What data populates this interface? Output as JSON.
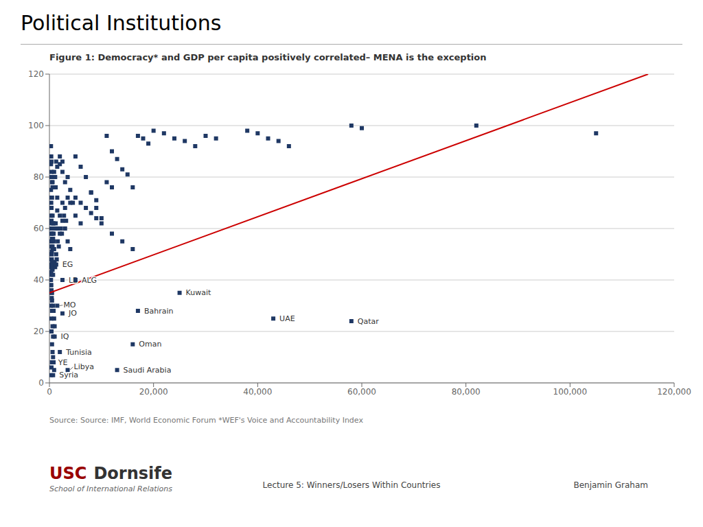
{
  "chart_data": {
    "type": "scatter",
    "title": "Political Institutions",
    "subtitle": "Figure 1: Democracy* and GDP per capita positively correlated– MENA is the exception",
    "series": [
      {
        "type": "scatter",
        "color": "#1f3864",
        "marker": "square",
        "x": [
          300,
          400,
          500,
          600,
          700,
          800,
          900,
          300,
          350,
          400,
          450,
          500,
          600,
          700,
          300,
          350,
          400,
          500,
          600,
          700,
          300,
          350,
          400,
          500,
          600,
          700,
          300,
          350,
          400,
          500,
          600,
          300,
          350,
          400,
          500,
          600,
          700,
          1000,
          1200,
          1500,
          2000,
          2500,
          3000,
          3500,
          4000,
          4500,
          5000,
          6000,
          7000,
          8000,
          9000,
          10000,
          11000,
          12000,
          13000,
          14000,
          15000,
          16000,
          17000,
          18000,
          19000,
          20000,
          22000,
          24000,
          26000,
          28000,
          30000,
          32000,
          38000,
          40000,
          42000,
          44000,
          46000,
          58000,
          60000,
          82000,
          105000,
          300,
          350,
          400,
          500,
          600,
          700,
          300,
          350,
          400,
          450,
          500,
          600,
          800,
          900,
          1000,
          1200,
          1500,
          2000,
          2500,
          3000,
          3500,
          4000,
          5000,
          6000,
          8000,
          9000,
          11000,
          12000,
          400,
          500,
          800,
          900,
          300,
          350,
          400,
          450,
          500,
          600,
          700,
          800,
          1500,
          2000,
          2500,
          3000,
          3500,
          4000,
          5000,
          6000,
          7000,
          8000,
          9000,
          10000,
          12000,
          14000,
          16000,
          300,
          400,
          500,
          300,
          350,
          400,
          450,
          600,
          700,
          800,
          900,
          1000,
          1100,
          1300,
          1400,
          1600,
          1800,
          2200,
          2400,
          2800,
          3200,
          300,
          400,
          600,
          700,
          900,
          1100,
          1300,
          1500,
          2000,
          2500,
          300,
          400
        ],
        "values": [
          38,
          42,
          35,
          28,
          18,
          8,
          5,
          55,
          48,
          58,
          50,
          47,
          44,
          30,
          65,
          60,
          63,
          56,
          52,
          45,
          75,
          70,
          68,
          72,
          65,
          62,
          85,
          80,
          82,
          78,
          76,
          92,
          88,
          86,
          44,
          46,
          42,
          80,
          76,
          72,
          85,
          82,
          78,
          80,
          75,
          70,
          88,
          84,
          80,
          74,
          68,
          64,
          96,
          90,
          87,
          83,
          81,
          76,
          96,
          95,
          93,
          98,
          97,
          95,
          94,
          92,
          96,
          95,
          98,
          97,
          95,
          94,
          92,
          100,
          99,
          100,
          97,
          30,
          25,
          20,
          15,
          12,
          10,
          40,
          38,
          36,
          33,
          28,
          22,
          28,
          25,
          22,
          62,
          60,
          58,
          63,
          60,
          55,
          52,
          65,
          62,
          74,
          71,
          78,
          76,
          35,
          32,
          55,
          52,
          45,
          43,
          50,
          48,
          55,
          53,
          60,
          58,
          67,
          65,
          70,
          68,
          72,
          70,
          72,
          70,
          68,
          66,
          64,
          62,
          58,
          55,
          52,
          3,
          6,
          8,
          48,
          46,
          53,
          51,
          58,
          56,
          62,
          60,
          47,
          45,
          50,
          48,
          55,
          53,
          60,
          58,
          65,
          63,
          68,
          72,
          78,
          76,
          82,
          80,
          86,
          84,
          88,
          86,
          58,
          62
        ]
      },
      {
        "type": "line",
        "color": "#cc0000",
        "x": [
          0,
          115000
        ],
        "values": [
          35,
          120
        ]
      }
    ],
    "annotations": [
      {
        "x": 1300,
        "y": 46,
        "text": "EG"
      },
      {
        "x": 2500,
        "y": 40,
        "text": "LB"
      },
      {
        "x": 5000,
        "y": 40,
        "text": "ALG"
      },
      {
        "x": 25000,
        "y": 35,
        "text": "Kuwait"
      },
      {
        "x": 17000,
        "y": 28,
        "text": "Bahrain"
      },
      {
        "x": 43000,
        "y": 25,
        "text": "UAE"
      },
      {
        "x": 58000,
        "y": 24,
        "text": "Qatar"
      },
      {
        "x": 16000,
        "y": 15,
        "text": "Oman"
      },
      {
        "x": 13000,
        "y": 5,
        "text": "Saudi Arabia"
      },
      {
        "x": 1500,
        "y": 30,
        "text": "MO"
      },
      {
        "x": 2500,
        "y": 27,
        "text": "JO"
      },
      {
        "x": 1000,
        "y": 18,
        "text": "IQ"
      },
      {
        "x": 2000,
        "y": 12,
        "text": "Tunisia"
      },
      {
        "x": 500,
        "y": 8,
        "text": "YE"
      },
      {
        "x": 3500,
        "y": 5,
        "text": "Libya"
      },
      {
        "x": 700,
        "y": 3,
        "text": "Syria"
      }
    ],
    "xlim": [
      0,
      120000
    ],
    "ylim": [
      0,
      120
    ],
    "xticks": [
      0,
      {
        "value": 20000,
        "label": "20,000"
      },
      {
        "value": 40000,
        "label": "40,000"
      },
      {
        "value": 60000,
        "label": "60,000"
      },
      {
        "value": 80000,
        "label": "80,000"
      },
      {
        "value": 100000,
        "label": "100,000"
      },
      {
        "value": 120000,
        "label": "120,000"
      }
    ],
    "yticks": [
      0,
      20,
      40,
      60,
      80,
      100,
      120
    ],
    "grid": "y",
    "source": "Source: Source: IMF, World Economic Forum *WEF's Voice and Accountability Index",
    "logo": {
      "texts": [
        "USC",
        "Dornsife"
      ],
      "colors": [
        "#990000",
        "#333333"
      ],
      "subtitle": "School of International Relations"
    },
    "footer": [
      "Lecture 5: Winners/Losers Within Countries",
      "Benjamin Graham"
    ]
  }
}
